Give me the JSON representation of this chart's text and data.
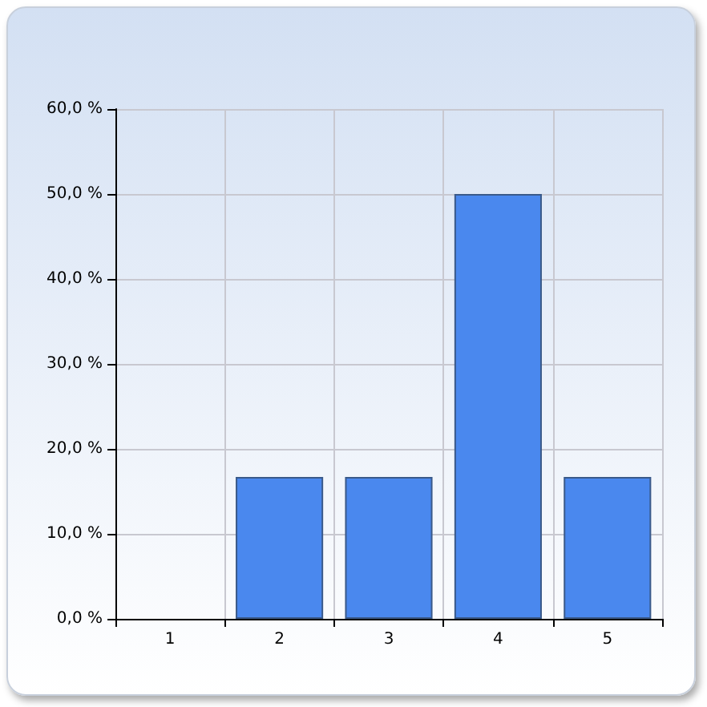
{
  "chart_data": {
    "type": "bar",
    "categories": [
      "1",
      "2",
      "3",
      "4",
      "5"
    ],
    "values": [
      0,
      16.7,
      16.7,
      50,
      16.7
    ],
    "color": "#4a88ee",
    "ylim": [
      0,
      60
    ],
    "yticks": [
      {
        "value": 0,
        "label": "0,0 %"
      },
      {
        "value": 10,
        "label": "10,0 %"
      },
      {
        "value": 20,
        "label": "20,0 %"
      },
      {
        "value": 30,
        "label": "30,0 %"
      },
      {
        "value": 40,
        "label": "40,0 %"
      },
      {
        "value": 50,
        "label": "50,0 %"
      },
      {
        "value": 60,
        "label": "60,0 %"
      }
    ],
    "grid": true
  }
}
